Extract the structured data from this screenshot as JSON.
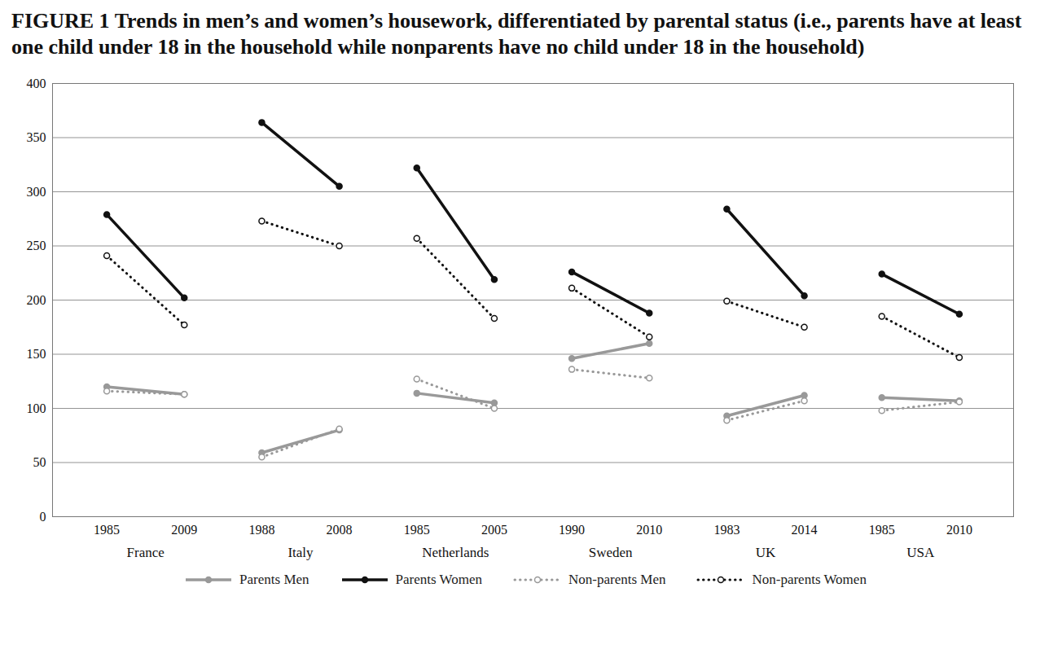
{
  "chart_data": {
    "type": "line",
    "title": "FIGURE 1   Trends in men’s and women’s housework, differentiated by parental status (i.e., parents have at least one child under 18 in the household while nonparents have no child under 18 in the household)",
    "x": [
      1985,
      2009,
      1988,
      2008,
      1985,
      2005,
      1990,
      2010,
      1983,
      2014,
      1985,
      2010
    ],
    "x_groups": [
      "France",
      "France",
      "Italy",
      "Italy",
      "Netherlands",
      "Netherlands",
      "Sweden",
      "Sweden",
      "UK",
      "UK",
      "USA",
      "USA"
    ],
    "series": [
      {
        "name": "Parents Men",
        "color": "#999999",
        "line_style": "solid",
        "marker": "circle",
        "values": [
          120,
          113,
          59,
          80,
          114,
          105,
          146,
          160,
          93,
          112,
          110,
          107
        ]
      },
      {
        "name": "Parents Women",
        "color": "#111111",
        "line_style": "solid",
        "marker": "circle",
        "values": [
          279,
          202,
          364,
          305,
          322,
          219,
          226,
          188,
          284,
          204,
          224,
          187
        ]
      },
      {
        "name": "Non-parents Men",
        "color": "#999999",
        "line_style": "dotted",
        "marker": "open circle",
        "values": [
          116,
          113,
          55,
          81,
          127,
          100,
          136,
          128,
          89,
          107,
          98,
          106
        ]
      },
      {
        "name": "Non-parents Women",
        "color": "#111111",
        "line_style": "dotted",
        "marker": "open circle",
        "values": [
          241,
          177,
          273,
          250,
          257,
          183,
          211,
          166,
          199,
          175,
          185,
          147
        ]
      }
    ],
    "ylim": [
      0,
      400
    ],
    "yticks": [
      0,
      50,
      100,
      150,
      200,
      250,
      300,
      350,
      400
    ],
    "grid": true,
    "legend": "bottom"
  }
}
